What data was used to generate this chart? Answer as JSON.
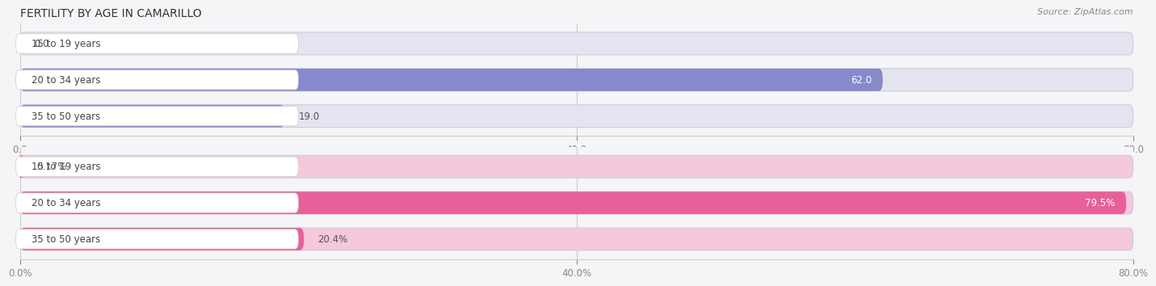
{
  "title": "FERTILITY BY AGE IN CAMARILLO",
  "source": "Source: ZipAtlas.com",
  "top_section": {
    "categories": [
      "15 to 19 years",
      "20 to 34 years",
      "35 to 50 years"
    ],
    "values": [
      0.0,
      62.0,
      19.0
    ],
    "value_labels": [
      "0.0",
      "62.0",
      "19.0"
    ],
    "bar_color": "#8888cc",
    "bar_bg_color": "#e4e4f0",
    "label_pill_color": "#ffffff",
    "xlim": [
      0,
      80
    ],
    "xticks": [
      0.0,
      40.0,
      80.0
    ],
    "xtick_labels": [
      "0.0",
      "40.0",
      "80.0"
    ]
  },
  "bottom_section": {
    "categories": [
      "15 to 19 years",
      "20 to 34 years",
      "35 to 50 years"
    ],
    "values": [
      0.17,
      79.5,
      20.4
    ],
    "value_labels": [
      "0.17%",
      "79.5%",
      "20.4%"
    ],
    "bar_color": "#e8609a",
    "bar_bg_color": "#f5c8dc",
    "label_pill_color": "#ffffff",
    "xlim": [
      0,
      80
    ],
    "xticks": [
      0.0,
      40.0,
      80.0
    ],
    "xtick_labels": [
      "0.0%",
      "40.0%",
      "80.0%"
    ]
  },
  "label_text_color": "#444444",
  "value_color_inside": "#ffffff",
  "value_color_outside": "#555555",
  "background_color": "#f5f5f8",
  "bar_height": 0.62,
  "fig_width": 14.06,
  "fig_height": 3.31
}
